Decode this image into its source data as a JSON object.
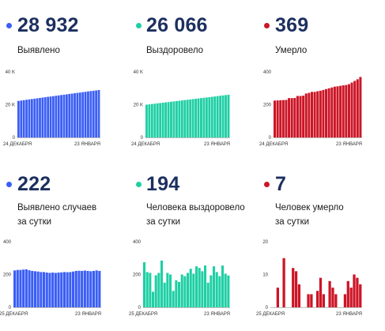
{
  "colors": {
    "blue": "#3b5ef6",
    "teal": "#1ecfa4",
    "red": "#cc1526",
    "value_text": "#1c2f5f",
    "axis": "#aaaaaa"
  },
  "cards": [
    {
      "value": "28 932",
      "label_line1": "Выявлено",
      "label_line2": "",
      "dot_color": "#3b5ef6"
    },
    {
      "value": "26 066",
      "label_line1": "Выздоровело",
      "label_line2": "",
      "dot_color": "#1ecfa4"
    },
    {
      "value": "369",
      "label_line1": "Умерло",
      "label_line2": "",
      "dot_color": "#cc1526"
    },
    {
      "value": "222",
      "label_line1": "Выявлено случаев",
      "label_line2": "за сутки",
      "dot_color": "#3b5ef6"
    },
    {
      "value": "194",
      "label_line1": "Человека выздоровело",
      "label_line2": "за сутки",
      "dot_color": "#1ecfa4"
    },
    {
      "value": "7",
      "label_line1": "Человек умерло",
      "label_line2": "за сутки",
      "dot_color": "#cc1526"
    }
  ],
  "chart_data": [
    {
      "type": "bar",
      "title": "",
      "color": "#3b5ef6",
      "x_start_label": "24 ДЕКАБРЯ",
      "x_end_label": "23 ЯНВАРЯ",
      "ylim": [
        0,
        40000
      ],
      "yticks": [
        "0",
        "20 K",
        "40 K"
      ],
      "ytick_values": [
        0,
        20000,
        40000
      ],
      "values": [
        22300,
        22500,
        22750,
        23000,
        23200,
        23450,
        23650,
        23900,
        24100,
        24350,
        24550,
        24800,
        25000,
        25200,
        25450,
        25650,
        25900,
        26100,
        26300,
        26550,
        26750,
        27000,
        27200,
        27400,
        27650,
        27850,
        28100,
        28300,
        28500,
        28700,
        28932
      ]
    },
    {
      "type": "bar",
      "title": "",
      "color": "#1ecfa4",
      "x_start_label": "24 ДЕКАБРЯ",
      "x_end_label": "23 ЯНВАРЯ",
      "ylim": [
        0,
        40000
      ],
      "yticks": [
        "0",
        "20 K",
        "40 K"
      ],
      "ytick_values": [
        0,
        20000,
        40000
      ],
      "values": [
        20000,
        20200,
        20400,
        20600,
        20800,
        21000,
        21200,
        21400,
        21600,
        21800,
        22000,
        22200,
        22400,
        22600,
        22800,
        23000,
        23200,
        23400,
        23600,
        23800,
        24000,
        24200,
        24400,
        24600,
        24800,
        25000,
        25250,
        25450,
        25650,
        25850,
        26066
      ]
    },
    {
      "type": "bar",
      "title": "",
      "color": "#cc1526",
      "x_start_label": "24 ДЕКАБРЯ",
      "x_end_label": "23 ЯНВАРЯ",
      "ylim": [
        0,
        400
      ],
      "yticks": [
        "0",
        "200",
        "400"
      ],
      "ytick_values": [
        0,
        200,
        400
      ],
      "values": [
        225,
        226,
        227,
        228,
        229,
        240,
        240,
        241,
        253,
        253,
        255,
        268,
        272,
        278,
        278,
        282,
        285,
        290,
        295,
        300,
        305,
        310,
        312,
        315,
        318,
        320,
        325,
        335,
        345,
        355,
        369
      ]
    },
    {
      "type": "bar",
      "title": "",
      "color": "#3b5ef6",
      "x_start_label": "25 ДЕКАБРЯ",
      "x_end_label": "23 ЯНВАРЯ",
      "ylim": [
        0,
        400
      ],
      "yticks": [
        "0",
        "200",
        "400"
      ],
      "ytick_values": [
        0,
        200,
        400
      ],
      "values": [
        225,
        228,
        228,
        230,
        232,
        226,
        222,
        220,
        218,
        215,
        215,
        212,
        210,
        212,
        210,
        212,
        213,
        215,
        214,
        215,
        218,
        222,
        223,
        222,
        224,
        222,
        220,
        222,
        225,
        222
      ]
    },
    {
      "type": "bar",
      "title": "",
      "color": "#1ecfa4",
      "x_start_label": "25 ДЕКАБРЯ",
      "x_end_label": "23 ЯНВАРЯ",
      "ylim": [
        0,
        400
      ],
      "yticks": [
        "0",
        "200",
        "400"
      ],
      "ytick_values": [
        0,
        200,
        400
      ],
      "values": [
        275,
        215,
        210,
        95,
        195,
        210,
        285,
        150,
        210,
        200,
        100,
        165,
        155,
        200,
        190,
        210,
        235,
        205,
        250,
        240,
        220,
        255,
        150,
        195,
        250,
        215,
        190,
        255,
        205,
        194
      ]
    },
    {
      "type": "bar",
      "title": "",
      "color": "#cc1526",
      "x_start_label": "25 ДЕКАБРЯ",
      "x_end_label": "23 ЯНВАРЯ",
      "ylim": [
        0,
        20
      ],
      "yticks": [
        "0",
        "10",
        "20"
      ],
      "ytick_values": [
        0,
        10,
        20
      ],
      "values": [
        0,
        0,
        6,
        0,
        15,
        0,
        0,
        12,
        11,
        7,
        0,
        0,
        4,
        4,
        0,
        5,
        9,
        4,
        0,
        8,
        6,
        4,
        0,
        0,
        4,
        8,
        6,
        10,
        9,
        7
      ]
    }
  ]
}
